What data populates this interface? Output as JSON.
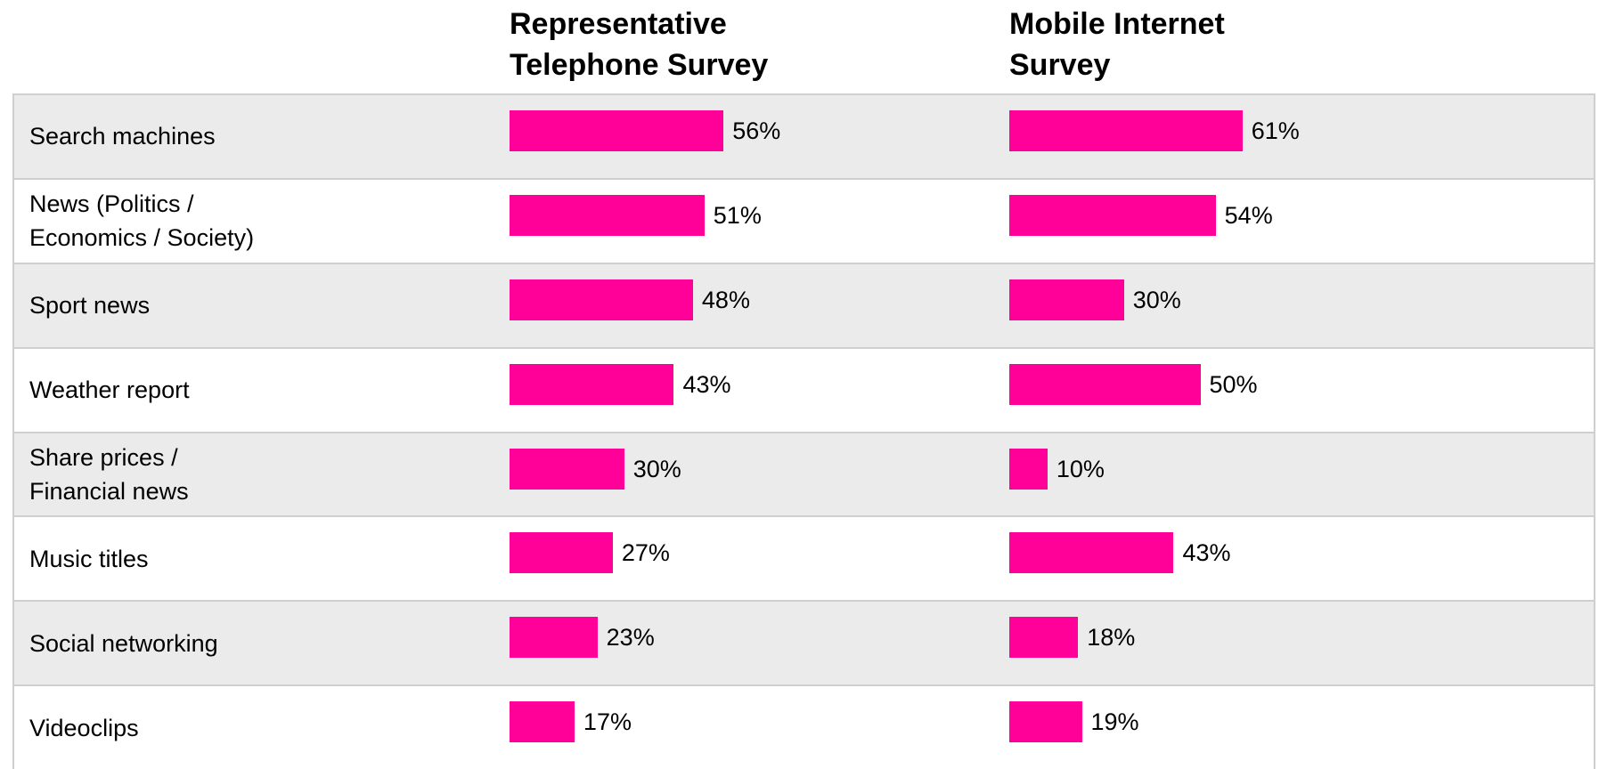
{
  "chart_data": {
    "type": "bar",
    "categories": [
      "Search machines",
      "News (Politics /\nEconomics / Society)",
      "Sport news",
      "Weather report",
      "Share prices /\nFinancial news",
      "Music titles",
      "Social networking",
      "Videoclips"
    ],
    "series": [
      {
        "name": "Representative\nTelephone Survey",
        "color": "#ff0099",
        "values": [
          56,
          51,
          48,
          43,
          30,
          27,
          23,
          17
        ],
        "value_labels": [
          "56%",
          "51%",
          "48%",
          "43%",
          "30%",
          "27%",
          "23%",
          "17%"
        ]
      },
      {
        "name": "Mobile Internet\nSurvey",
        "color": "#ff0099",
        "values": [
          61,
          54,
          30,
          50,
          10,
          43,
          18,
          19
        ],
        "value_labels": [
          "61%",
          "54%",
          "30%",
          "50%",
          "10%",
          "43%",
          "18%",
          "19%"
        ]
      }
    ]
  }
}
